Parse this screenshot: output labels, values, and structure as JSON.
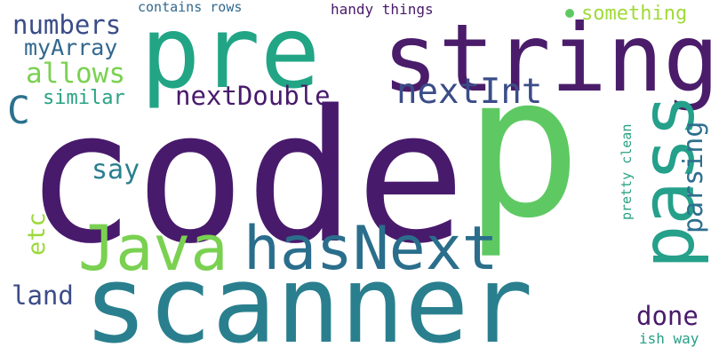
{
  "words": [
    {
      "text": "code",
      "color": "#481a6c",
      "orientation": "horizontal"
    },
    {
      "text": "p",
      "color": "#5ec962",
      "orientation": "horizontal"
    },
    {
      "text": "pre",
      "color": "#21a585",
      "orientation": "horizontal"
    },
    {
      "text": "string",
      "color": "#4a1c6a",
      "orientation": "horizontal"
    },
    {
      "text": "scanner",
      "color": "#2a7f8e",
      "orientation": "horizontal"
    },
    {
      "text": "hasNext",
      "color": "#2a6e8c",
      "orientation": "horizontal"
    },
    {
      "text": "Java",
      "color": "#7ad151",
      "orientation": "horizontal"
    },
    {
      "text": "pass",
      "color": "#25a08a",
      "orientation": "vertical"
    },
    {
      "text": "nextInt",
      "color": "#3b4c88",
      "orientation": "horizontal"
    },
    {
      "text": "nextDouble",
      "color": "#481a6c",
      "orientation": "horizontal"
    },
    {
      "text": "parsing",
      "color": "#2e6f8e",
      "orientation": "vertical"
    },
    {
      "text": "numbers",
      "color": "#3a4c88",
      "orientation": "horizontal"
    },
    {
      "text": "myArray",
      "color": "#31688e",
      "orientation": "horizontal"
    },
    {
      "text": "allows",
      "color": "#7ad151",
      "orientation": "horizontal"
    },
    {
      "text": "similar",
      "color": "#2aa283",
      "orientation": "horizontal"
    },
    {
      "text": "C",
      "color": "#2c718e",
      "orientation": "horizontal"
    },
    {
      "text": "say",
      "color": "#2a7f8e",
      "orientation": "horizontal"
    },
    {
      "text": "etc",
      "color": "#9bd93c",
      "orientation": "vertical"
    },
    {
      "text": "land",
      "color": "#3b4c88",
      "orientation": "horizontal"
    },
    {
      "text": "done",
      "color": "#481a6c",
      "orientation": "horizontal"
    },
    {
      "text": "something",
      "color": "#a0da39",
      "orientation": "horizontal"
    },
    {
      "text": "contains rows",
      "color": "#31688e",
      "orientation": "horizontal"
    },
    {
      "text": "handy things",
      "color": "#481a6c",
      "orientation": "horizontal"
    },
    {
      "text": "pretty clean",
      "color": "#2aa283",
      "orientation": "vertical"
    },
    {
      "text": "ish way",
      "color": "#26a087",
      "orientation": "horizontal"
    }
  ]
}
